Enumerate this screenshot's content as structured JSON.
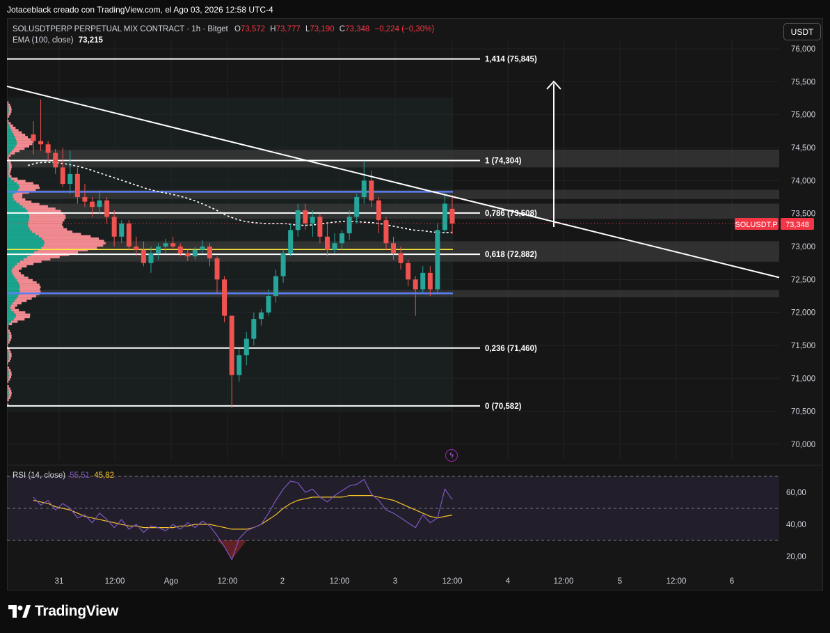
{
  "header": {
    "credit": "Jotaceblack creado con TradingView.com, el Ago 03, 2026 12:58 UTC-4"
  },
  "legend": {
    "symbol": "SOLUSDTPERP PERPETUAL MIX CONTRACT · 1h · Bitget",
    "o_label": "O",
    "o_value": "73,572",
    "h_label": "H",
    "h_value": "73,777",
    "l_label": "L",
    "l_value": "73,190",
    "c_label": "C",
    "c_value": "73,348",
    "change": "−0,224 (−0,30%)",
    "ema_label": "EMA (100, close)",
    "ema_value": "73,215",
    "rsi_label": "RSI (14, close)",
    "rsi_value": "55,51",
    "rsi_ma_value": "45,82"
  },
  "currency_button": "USDT",
  "price_tag": {
    "symbol": "SOLUSDT.P",
    "value": "73,348"
  },
  "colors": {
    "up": "#26a69a",
    "down": "#ef5350",
    "background": "#161616",
    "fib_line": "#ffffff",
    "fib_golden": "#ffeb3b",
    "blue_level": "#5b7ff5",
    "rsi_line": "#7e57c2",
    "rsi_ma": "#f7c52b",
    "price_tag_bg": "#f23645",
    "volume_profile_up": "#1aa58f",
    "volume_profile_down": "#f28b91"
  },
  "chart_data": {
    "type": "candlestick",
    "timeframe": "1h",
    "ylim": [
      69700,
      76300
    ],
    "y_ticks": [
      "76,000",
      "75,500",
      "75,000",
      "74,500",
      "74,000",
      "73,500",
      "73,000",
      "72,500",
      "72,000",
      "71,500",
      "71,000",
      "70,500",
      "70,000"
    ],
    "x_ticks": [
      "31",
      "12:00",
      "Ago",
      "12:00",
      "2",
      "12:00",
      "3",
      "12:00",
      "4",
      "12:00",
      "5",
      "12:00",
      "6"
    ],
    "fib_levels": [
      {
        "label": "1,414 (75,845)",
        "value": 75845
      },
      {
        "label": "1 (74,304)",
        "value": 74304
      },
      {
        "label": "0,786 (73,508)",
        "value": 73508
      },
      {
        "label": "0,618 (72,882)",
        "value": 72882
      },
      {
        "label": "0,236 (71,460)",
        "value": 71460
      },
      {
        "label": "0 (70,582)",
        "value": 70582
      }
    ],
    "gray_zones": [
      [
        74200,
        74470
      ],
      [
        73720,
        73860
      ],
      [
        73420,
        73650
      ],
      [
        72770,
        73080
      ],
      [
        72230,
        72340
      ]
    ],
    "blue_levels": [
      73830,
      72290
    ],
    "yellow_level": 72955,
    "trendline": {
      "start": 75430,
      "end": 72530
    },
    "ema_100": [
      74230,
      74270,
      74280,
      74270,
      74250,
      74220,
      74180,
      74130,
      74080,
      74030,
      73980,
      73930,
      73880,
      73840,
      73810,
      73780,
      73740,
      73690,
      73630,
      73560,
      73480,
      73420,
      73380,
      73360,
      73350,
      73350,
      73350,
      73330,
      73320,
      73330,
      73350,
      73370,
      73380,
      73380,
      73370,
      73360,
      73340,
      73310,
      73280,
      73250,
      73240,
      73220,
      73210,
      73215
    ],
    "candles": [
      [
        74700,
        74900,
        74400,
        74600
      ],
      [
        74600,
        75230,
        74450,
        74550
      ],
      [
        74550,
        74600,
        74300,
        74420
      ],
      [
        74420,
        74480,
        74100,
        74200
      ],
      [
        74200,
        74500,
        73900,
        73950
      ],
      [
        73950,
        74450,
        73800,
        74100
      ],
      [
        74100,
        74200,
        73650,
        73750
      ],
      [
        73750,
        73950,
        73600,
        73680
      ],
      [
        73680,
        73750,
        73450,
        73600
      ],
      [
        73600,
        73850,
        73500,
        73700
      ],
      [
        73700,
        73750,
        73350,
        73450
      ],
      [
        73450,
        73550,
        73000,
        73150
      ],
      [
        73150,
        73400,
        73050,
        73350
      ],
      [
        73350,
        73400,
        72950,
        73000
      ],
      [
        73000,
        73150,
        72850,
        72950
      ],
      [
        72950,
        73080,
        72700,
        72750
      ],
      [
        72750,
        73000,
        72600,
        72900
      ],
      [
        72900,
        73050,
        72800,
        73000
      ],
      [
        73000,
        73120,
        72900,
        73050
      ],
      [
        73050,
        73150,
        72950,
        73000
      ],
      [
        73000,
        73050,
        72850,
        72900
      ],
      [
        72900,
        72950,
        72780,
        72850
      ],
      [
        72850,
        73000,
        72800,
        72950
      ],
      [
        72950,
        73100,
        72900,
        73000
      ],
      [
        73000,
        73050,
        72700,
        72820
      ],
      [
        72820,
        72850,
        72300,
        72500
      ],
      [
        72500,
        72550,
        71850,
        71950
      ],
      [
        71950,
        71950,
        70550,
        71050
      ],
      [
        71050,
        71450,
        70950,
        71350
      ],
      [
        71350,
        71700,
        71200,
        71600
      ],
      [
        71600,
        72000,
        71500,
        71900
      ],
      [
        71900,
        72050,
        71800,
        72000
      ],
      [
        72000,
        72350,
        71950,
        72250
      ],
      [
        72250,
        72650,
        72150,
        72550
      ],
      [
        72550,
        72950,
        72450,
        72900
      ],
      [
        72900,
        73350,
        72850,
        73250
      ],
      [
        73250,
        73650,
        73150,
        73550
      ],
      [
        73550,
        73650,
        73250,
        73350
      ],
      [
        73350,
        73550,
        73150,
        73450
      ],
      [
        73450,
        73500,
        73050,
        73150
      ],
      [
        73150,
        73350,
        72850,
        72950
      ],
      [
        72950,
        73200,
        72900,
        73050
      ],
      [
        73050,
        73250,
        72950,
        73200
      ],
      [
        73200,
        73550,
        73100,
        73450
      ],
      [
        73450,
        73800,
        73350,
        73750
      ],
      [
        73750,
        74300,
        73650,
        74000
      ],
      [
        74000,
        74150,
        73600,
        73700
      ],
      [
        73700,
        73750,
        73200,
        73400
      ],
      [
        73400,
        73450,
        72950,
        73050
      ],
      [
        73050,
        73150,
        72800,
        72900
      ],
      [
        72900,
        73000,
        72650,
        72750
      ],
      [
        72750,
        72800,
        72400,
        72500
      ],
      [
        72500,
        72550,
        71950,
        72350
      ],
      [
        72350,
        72700,
        72300,
        72600
      ],
      [
        72600,
        72700,
        72250,
        72350
      ],
      [
        72350,
        73350,
        72300,
        73250
      ],
      [
        73250,
        73800,
        73200,
        73650
      ],
      [
        73572,
        73777,
        73190,
        73348
      ]
    ],
    "rsi": {
      "label": "RSI (14, close)",
      "ylim": [
        12,
        70
      ],
      "y_ticks": [
        "60,00",
        "40,00",
        "20,00"
      ],
      "bands": [
        70,
        50,
        30
      ],
      "values": [
        57,
        52,
        55,
        49,
        53,
        50,
        44,
        46,
        41,
        47,
        43,
        38,
        43,
        37,
        40,
        35,
        39,
        38,
        36,
        40,
        37,
        41,
        38,
        42,
        39,
        33,
        26,
        18,
        31,
        36,
        38,
        40,
        47,
        55,
        62,
        67,
        66,
        60,
        62,
        57,
        54,
        58,
        61,
        64,
        65,
        68,
        59,
        55,
        49,
        47,
        44,
        41,
        38,
        46,
        41,
        44,
        62,
        55.51
      ],
      "ma": [
        55,
        54,
        53,
        51,
        50,
        49,
        47,
        45,
        44,
        43,
        42,
        41,
        40,
        39,
        39,
        38,
        38,
        38,
        38,
        38,
        39,
        39,
        40,
        40,
        40,
        39,
        38,
        37,
        37,
        37,
        38,
        40,
        43,
        46,
        50,
        53,
        55,
        56,
        57,
        57,
        57,
        57,
        57,
        58,
        58,
        58,
        58,
        57,
        56,
        55,
        53,
        51,
        49,
        47,
        45,
        44,
        45,
        45.82
      ]
    }
  }
}
